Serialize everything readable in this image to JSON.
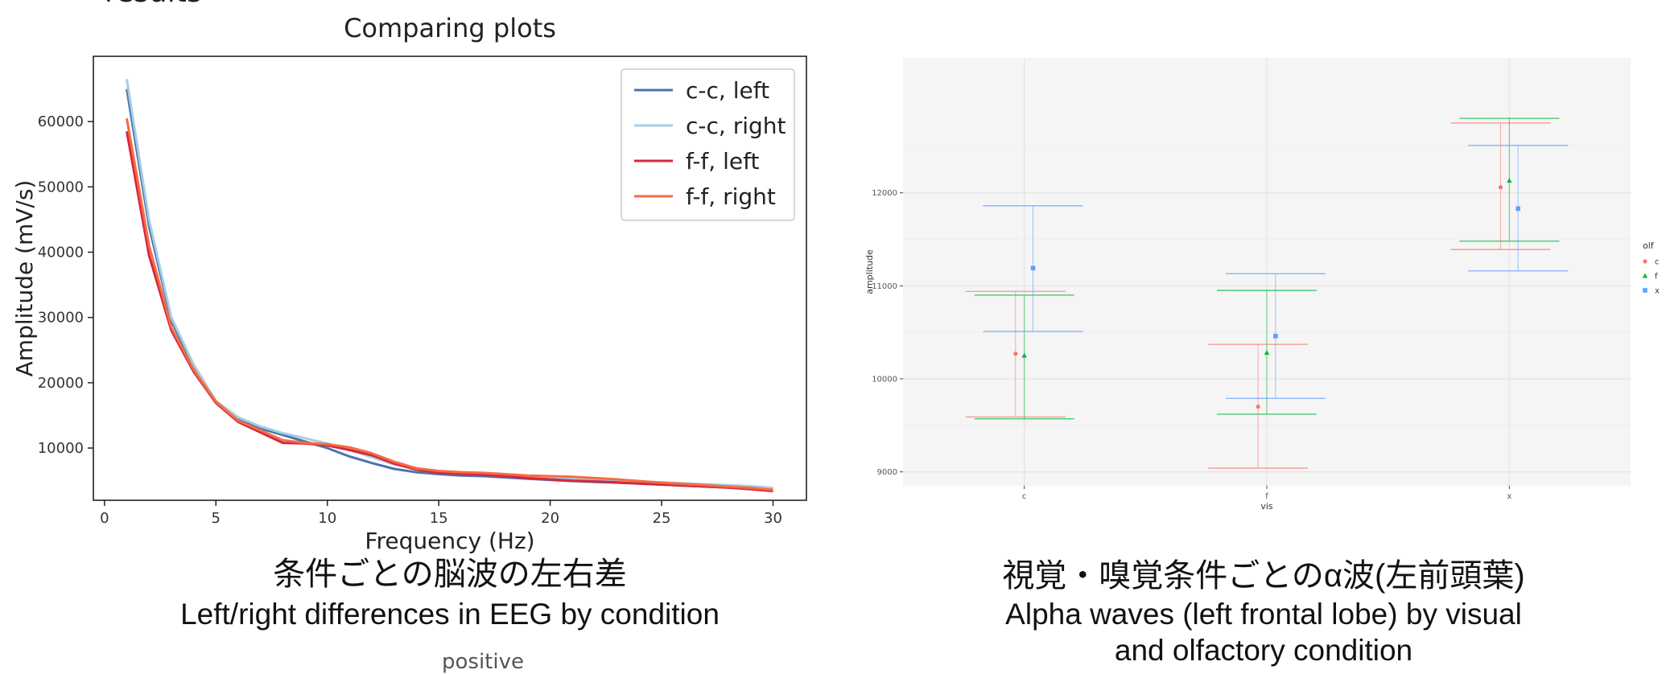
{
  "page": {
    "partial_top_text": "results",
    "bottom_partial_text": "positive"
  },
  "captions": {
    "left_ja": "条件ごとの脳波の左右差",
    "left_en": "Left/right differences in EEG by condition",
    "right_ja": "視覚・嗅覚条件ごとのα波(左前頭葉)",
    "right_en_1": "Alpha waves (left frontal lobe) by visual",
    "right_en_2": "and olfactory condition"
  },
  "chart_data": [
    {
      "type": "line",
      "title": "Comparing plots",
      "xlabel": "Frequency (Hz)",
      "ylabel": "Amplitude (mV/s)",
      "xlim": [
        -0.5,
        31.5
      ],
      "ylim": [
        2000,
        70000
      ],
      "xticks": [
        0,
        5,
        10,
        15,
        20,
        25,
        30
      ],
      "yticks": [
        10000,
        20000,
        30000,
        40000,
        50000,
        60000
      ],
      "grid": false,
      "legend": "top-right",
      "x": [
        1,
        2,
        3,
        4,
        5,
        6,
        7,
        8,
        9,
        10,
        11,
        12,
        13,
        14,
        15,
        16,
        17,
        18,
        19,
        20,
        21,
        22,
        23,
        24,
        25,
        26,
        27,
        28,
        29,
        30
      ],
      "series": [
        {
          "name": "c-c, left",
          "color": "#4c72b0",
          "values": [
            65000,
            44000,
            29500,
            22500,
            17000,
            14500,
            13000,
            12000,
            11000,
            10000,
            8700,
            7700,
            6800,
            6300,
            6000,
            5800,
            5700,
            5500,
            5300,
            5100,
            4950,
            4800,
            4700,
            4550,
            4400,
            4250,
            4100,
            3950,
            3800,
            3600
          ]
        },
        {
          "name": "c-c, right",
          "color": "#a6cee3",
          "values": [
            66500,
            45000,
            30000,
            22800,
            17200,
            14700,
            13300,
            12300,
            11500,
            10700,
            9700,
            8600,
            7500,
            6900,
            6400,
            6200,
            6000,
            5900,
            5700,
            5500,
            5350,
            5200,
            5050,
            4900,
            4750,
            4600,
            4450,
            4300,
            4150,
            3900
          ]
        },
        {
          "name": "f-f, left",
          "color": "#d7263d",
          "values": [
            58500,
            39500,
            28000,
            21700,
            16900,
            14000,
            12400,
            10800,
            10700,
            10400,
            9700,
            8900,
            7600,
            6700,
            6200,
            6050,
            5900,
            5700,
            5400,
            5200,
            5000,
            4900,
            4750,
            4550,
            4400,
            4250,
            4100,
            3950,
            3700,
            3400
          ]
        },
        {
          "name": "f-f, right",
          "color": "#f46d43",
          "values": [
            60500,
            41000,
            28500,
            22000,
            17100,
            14200,
            12700,
            11200,
            10800,
            10600,
            10100,
            9200,
            7900,
            6900,
            6500,
            6300,
            6200,
            6000,
            5800,
            5700,
            5600,
            5400,
            5200,
            4950,
            4700,
            4500,
            4300,
            4100,
            3900,
            3600
          ]
        }
      ]
    },
    {
      "type": "scatter",
      "title": "",
      "xlabel": "vis",
      "ylabel": "amplitude",
      "categories": [
        "c",
        "f",
        "x"
      ],
      "ylim": [
        8850,
        13450
      ],
      "yticks": [
        9000,
        10000,
        11000,
        12000
      ],
      "grid": true,
      "legend": "right",
      "legend_title": "olf",
      "background": "#f5f5f5",
      "series": [
        {
          "name": "c",
          "color": "#f8766d",
          "offset": -0.012,
          "values": [
            10270,
            9700,
            12060
          ],
          "lower": [
            9590,
            9040,
            11390
          ],
          "upper": [
            10940,
            10370,
            12750
          ]
        },
        {
          "name": "f",
          "color": "#00ba38",
          "offset": 0.0,
          "values": [
            10250,
            10280,
            12130
          ],
          "lower": [
            9570,
            9620,
            11480
          ],
          "upper": [
            10900,
            10950,
            12800
          ]
        },
        {
          "name": "x",
          "color": "#619cff",
          "offset": 0.012,
          "values": [
            11190,
            10460,
            11830
          ],
          "lower": [
            10510,
            9790,
            11160
          ],
          "upper": [
            11860,
            11130,
            12510
          ]
        }
      ]
    }
  ]
}
